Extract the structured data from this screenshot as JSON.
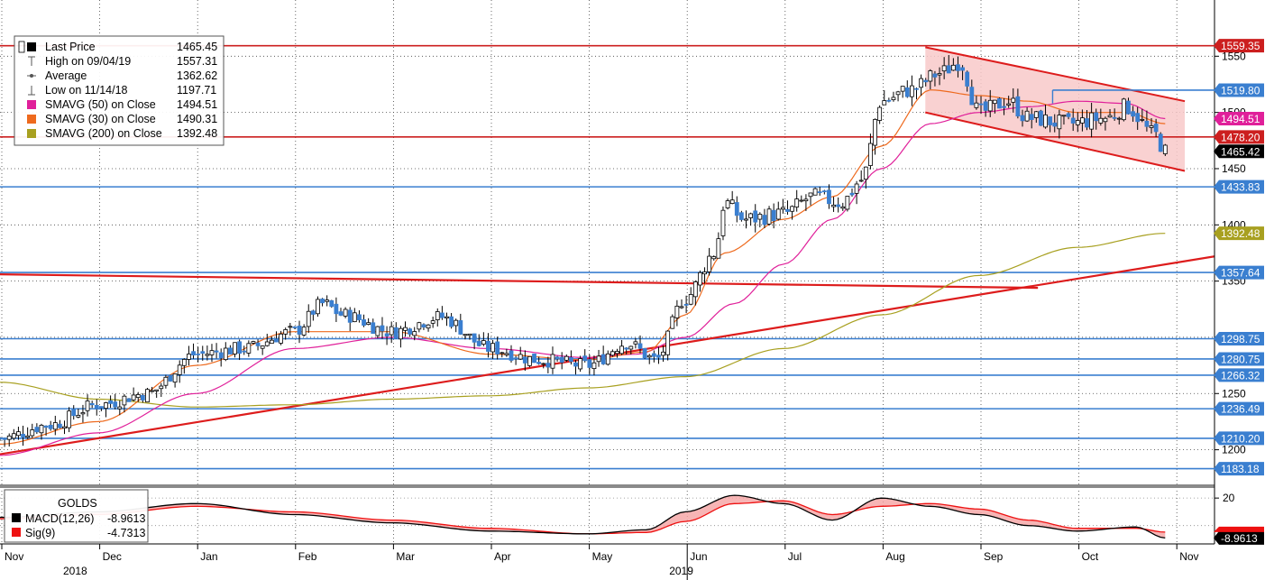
{
  "legend": {
    "items": [
      {
        "label": "Last Price",
        "value": "1465.45",
        "icon": "black-square-icon",
        "color": "#000000"
      },
      {
        "label": "High on 09/04/19",
        "value": "1557.31",
        "icon": "high-marker-icon",
        "color": "#555555"
      },
      {
        "label": "Average",
        "value": "1362.62",
        "icon": "average-marker-icon",
        "color": "#555555"
      },
      {
        "label": "Low on 11/14/18",
        "value": "1197.71",
        "icon": "low-marker-icon",
        "color": "#555555"
      },
      {
        "label": "SMAVG (50)  on Close",
        "value": "1494.51",
        "icon": "magenta-square-icon",
        "color": "#e0209a"
      },
      {
        "label": "SMAVG (30)  on Close",
        "value": "1490.31",
        "icon": "orange-square-icon",
        "color": "#ee6a1e"
      },
      {
        "label": "SMAVG (200)  on Close",
        "value": "1392.48",
        "icon": "olive-square-icon",
        "color": "#a8a020"
      }
    ]
  },
  "macd_legend": {
    "title": "GOLDS",
    "items": [
      {
        "label": "MACD(12,26)",
        "value": "-8.9613",
        "icon": "black-square-icon",
        "color": "#000000"
      },
      {
        "label": "Sig(9)",
        "value": "-4.7313",
        "icon": "red-square-icon",
        "color": "#ee1111"
      }
    ]
  },
  "chart_data": {
    "type": "candlestick",
    "y_ticks": [
      1200,
      1250,
      1300,
      1350,
      1400,
      1450,
      1500,
      1550
    ],
    "x_ticks": [
      "Nov",
      "Dec",
      "Jan",
      "Feb",
      "Mar",
      "Apr",
      "May",
      "Jun",
      "Jul",
      "Aug",
      "Sep",
      "Oct",
      "Nov"
    ],
    "year_labels": [
      "2018",
      "2019"
    ],
    "horizontal_levels": [
      {
        "value": 1559.35,
        "label": "1559.35",
        "color": "#cc1f1f"
      },
      {
        "value": 1519.8,
        "label": "1519.80",
        "color": "#3a7fd0"
      },
      {
        "value": 1494.51,
        "label": "1494.51",
        "color": "#e0209a"
      },
      {
        "value": 1478.2,
        "label": "1478.20",
        "color": "#cc1f1f"
      },
      {
        "value": 1465.42,
        "label": "1465.42",
        "color": "#000000"
      },
      {
        "value": 1433.83,
        "label": "1433.83",
        "color": "#3a7fd0"
      },
      {
        "value": 1392.48,
        "label": "1392.48",
        "color": "#a8a020"
      },
      {
        "value": 1357.64,
        "label": "1357.64",
        "color": "#3a7fd0"
      },
      {
        "value": 1298.75,
        "label": "1298.75",
        "color": "#3a7fd0"
      },
      {
        "value": 1280.75,
        "label": "1280.75",
        "color": "#3a7fd0"
      },
      {
        "value": 1266.32,
        "label": "1266.32",
        "color": "#3a7fd0"
      },
      {
        "value": 1236.49,
        "label": "1236.49",
        "color": "#3a7fd0"
      },
      {
        "value": 1210.2,
        "label": "1210.20",
        "color": "#3a7fd0"
      },
      {
        "value": 1183.18,
        "label": "1183.18",
        "color": "#3a7fd0"
      }
    ],
    "close_anchors": [
      [
        0,
        1210
      ],
      [
        0.5,
        1222
      ],
      [
        1,
        1240
      ],
      [
        1.5,
        1250
      ],
      [
        2,
        1285
      ],
      [
        2.5,
        1290
      ],
      [
        3,
        1305
      ],
      [
        3.3,
        1330
      ],
      [
        3.5,
        1320
      ],
      [
        4,
        1305
      ],
      [
        4.5,
        1318
      ],
      [
        5,
        1290
      ],
      [
        5.5,
        1280
      ],
      [
        6,
        1275
      ],
      [
        6.4,
        1295
      ],
      [
        6.7,
        1280
      ],
      [
        7,
        1335
      ],
      [
        7.3,
        1375
      ],
      [
        7.4,
        1420
      ],
      [
        7.6,
        1405
      ],
      [
        8,
        1410
      ],
      [
        8.3,
        1425
      ],
      [
        8.6,
        1420
      ],
      [
        8.8,
        1440
      ],
      [
        9,
        1510
      ],
      [
        9.3,
        1520
      ],
      [
        9.6,
        1535
      ],
      [
        9.8,
        1545
      ],
      [
        10,
        1500
      ],
      [
        10.3,
        1510
      ],
      [
        10.5,
        1495
      ],
      [
        10.9,
        1490
      ],
      [
        11.3,
        1495
      ],
      [
        11.5,
        1505
      ],
      [
        11.8,
        1480
      ],
      [
        11.9,
        1465
      ]
    ],
    "sma30_anchors": [
      [
        0,
        1205
      ],
      [
        1,
        1225
      ],
      [
        2,
        1275
      ],
      [
        3,
        1305
      ],
      [
        4,
        1305
      ],
      [
        5,
        1285
      ],
      [
        6,
        1280
      ],
      [
        6.6,
        1287
      ],
      [
        7,
        1320
      ],
      [
        7.4,
        1375
      ],
      [
        8,
        1405
      ],
      [
        8.5,
        1425
      ],
      [
        9,
        1470
      ],
      [
        9.5,
        1520
      ],
      [
        10,
        1515
      ],
      [
        10.5,
        1510
      ],
      [
        11,
        1500
      ],
      [
        11.5,
        1500
      ],
      [
        11.9,
        1490
      ]
    ],
    "sma50_anchors": [
      [
        0,
        1195
      ],
      [
        1,
        1215
      ],
      [
        2,
        1250
      ],
      [
        3,
        1290
      ],
      [
        4,
        1300
      ],
      [
        5,
        1290
      ],
      [
        6,
        1282
      ],
      [
        6.5,
        1285
      ],
      [
        7,
        1300
      ],
      [
        7.5,
        1330
      ],
      [
        8,
        1365
      ],
      [
        8.5,
        1405
      ],
      [
        9,
        1450
      ],
      [
        9.5,
        1490
      ],
      [
        10,
        1500
      ],
      [
        10.5,
        1505
      ],
      [
        11,
        1510
      ],
      [
        11.5,
        1508
      ],
      [
        11.9,
        1494.51
      ]
    ],
    "sma200_anchors": [
      [
        0,
        1260
      ],
      [
        1,
        1245
      ],
      [
        2,
        1238
      ],
      [
        3,
        1240
      ],
      [
        4,
        1245
      ],
      [
        5,
        1248
      ],
      [
        6,
        1255
      ],
      [
        7,
        1265
      ],
      [
        8,
        1290
      ],
      [
        9,
        1320
      ],
      [
        10,
        1355
      ],
      [
        11,
        1380
      ],
      [
        11.9,
        1392.48
      ]
    ],
    "macd_anchors": [
      [
        0,
        6
      ],
      [
        1,
        10
      ],
      [
        2,
        16
      ],
      [
        3,
        8
      ],
      [
        4,
        2
      ],
      [
        5,
        -4
      ],
      [
        6,
        -6
      ],
      [
        6.6,
        -3
      ],
      [
        7,
        10
      ],
      [
        7.5,
        22
      ],
      [
        8,
        16
      ],
      [
        8.5,
        4
      ],
      [
        9,
        20
      ],
      [
        9.5,
        14
      ],
      [
        10,
        8
      ],
      [
        10.5,
        0
      ],
      [
        11,
        -4
      ],
      [
        11.6,
        -1
      ],
      [
        11.9,
        -9
      ]
    ],
    "signal_anchors": [
      [
        0,
        5
      ],
      [
        1,
        8
      ],
      [
        2,
        14
      ],
      [
        3,
        10
      ],
      [
        4,
        4
      ],
      [
        5,
        -2
      ],
      [
        6,
        -6
      ],
      [
        6.6,
        -5
      ],
      [
        7,
        3
      ],
      [
        7.5,
        16
      ],
      [
        8,
        18
      ],
      [
        8.5,
        8
      ],
      [
        9,
        14
      ],
      [
        9.5,
        16
      ],
      [
        10,
        12
      ],
      [
        10.5,
        4
      ],
      [
        11,
        -2
      ],
      [
        11.6,
        -2
      ],
      [
        11.9,
        -4.7
      ]
    ],
    "macd_ticks": [
      20
    ],
    "macd_last_labels": [
      "-8.9613"
    ],
    "price_range": [
      1170,
      1600
    ],
    "macd_range": [
      -12,
      26
    ],
    "colors": {
      "up_candle": "#ffffff",
      "down_candle": "#3a7fd0",
      "channel_fill": "#f8c9c9",
      "channel_line": "#dd1c1c",
      "trendline": "#dd1c1c",
      "sma30": "#ee6a1e",
      "sma50": "#e0209a",
      "sma200": "#a8a020",
      "macd": "#000000",
      "signal": "#ee1111",
      "macd_fill": "#f5a3a3"
    }
  }
}
